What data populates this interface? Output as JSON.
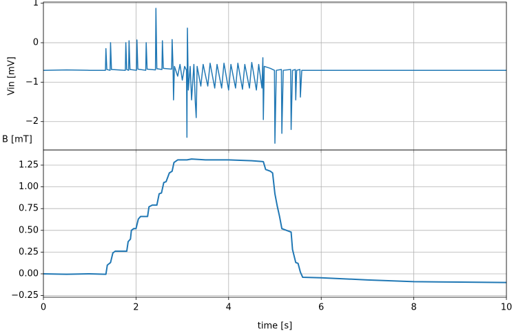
{
  "chart_data": [
    {
      "type": "line",
      "ylabel": "Vin [mV]",
      "x": [
        0,
        0.5,
        1.0,
        1.34,
        1.35,
        1.37,
        1.44,
        1.45,
        1.47,
        1.77,
        1.78,
        1.8,
        1.84,
        1.85,
        1.87,
        2.01,
        2.02,
        2.04,
        2.21,
        2.22,
        2.24,
        2.42,
        2.43,
        2.45,
        2.56,
        2.57,
        2.59,
        2.77,
        2.78,
        2.8,
        2.81,
        2.83,
        2.9,
        2.95,
        3.0,
        3.05,
        3.09,
        3.1,
        3.11,
        3.13,
        3.17,
        3.2,
        3.25,
        3.28,
        3.3,
        3.32,
        3.4,
        3.45,
        3.55,
        3.6,
        3.7,
        3.75,
        3.85,
        3.9,
        4.0,
        4.05,
        4.15,
        4.2,
        4.3,
        4.35,
        4.45,
        4.5,
        4.6,
        4.65,
        4.72,
        4.74,
        4.75,
        4.77,
        4.9,
        4.99,
        5.0,
        5.03,
        5.14,
        5.15,
        5.18,
        5.34,
        5.35,
        5.38,
        5.44,
        5.45,
        5.47,
        5.54,
        5.55,
        5.58,
        6,
        7,
        8,
        9,
        10
      ],
      "series": [
        {
          "color": "#1f77b4",
          "values": [
            -0.7,
            -0.69,
            -0.7,
            -0.7,
            -0.15,
            -0.68,
            -0.7,
            0.0,
            -0.68,
            -0.7,
            0.0,
            -0.68,
            -0.7,
            0.05,
            -0.68,
            -0.7,
            0.07,
            -0.67,
            -0.7,
            0.0,
            -0.67,
            -0.69,
            0.87,
            -0.66,
            -0.68,
            0.05,
            -0.65,
            -0.67,
            0.08,
            -0.62,
            -1.45,
            -0.6,
            -0.85,
            -0.55,
            -0.95,
            -0.6,
            -0.7,
            -2.4,
            0.37,
            -1.2,
            -0.6,
            -1.45,
            -0.55,
            -1.5,
            -1.9,
            -0.6,
            -1.1,
            -0.55,
            -1.1,
            -0.52,
            -1.15,
            -0.55,
            -1.15,
            -0.52,
            -1.2,
            -0.55,
            -1.15,
            -0.52,
            -1.18,
            -0.55,
            -1.15,
            -0.5,
            -1.2,
            -0.55,
            -1.15,
            -0.38,
            -1.95,
            -0.6,
            -0.65,
            -0.7,
            -2.55,
            -0.7,
            -0.68,
            -2.3,
            -0.7,
            -0.68,
            -2.2,
            -0.7,
            -0.68,
            -1.45,
            -0.7,
            -0.68,
            -1.38,
            -0.7,
            -0.7,
            -0.7,
            -0.7,
            -0.7,
            -0.7
          ]
        }
      ],
      "xlim": [
        0,
        10
      ],
      "xticks": [
        0,
        2,
        4,
        6,
        8,
        10
      ],
      "ylim": [
        -2.72,
        1.03
      ],
      "yticks": [
        {
          "value": -2,
          "label": "−2"
        },
        {
          "value": -1,
          "label": "−1"
        },
        0,
        1
      ],
      "grid": true
    },
    {
      "type": "line",
      "ylabel": "B [mT]",
      "xlabel": "time [s]",
      "x": [
        0,
        0.5,
        1.0,
        1.35,
        1.38,
        1.45,
        1.5,
        1.55,
        1.8,
        1.83,
        1.88,
        1.9,
        1.95,
        2.0,
        2.05,
        2.1,
        2.25,
        2.28,
        2.35,
        2.45,
        2.5,
        2.55,
        2.6,
        2.65,
        2.72,
        2.78,
        2.82,
        2.9,
        3.1,
        3.2,
        3.5,
        4.0,
        4.5,
        4.75,
        4.8,
        4.9,
        4.95,
        5.0,
        5.05,
        5.1,
        5.15,
        5.25,
        5.35,
        5.38,
        5.45,
        5.5,
        5.55,
        5.6,
        6,
        7,
        8,
        9,
        10
      ],
      "series": [
        {
          "color": "#1f77b4",
          "values": [
            0,
            -0.005,
            0,
            -0.005,
            0.1,
            0.13,
            0.24,
            0.26,
            0.26,
            0.37,
            0.4,
            0.5,
            0.52,
            0.52,
            0.63,
            0.66,
            0.66,
            0.77,
            0.79,
            0.79,
            0.92,
            0.93,
            1.05,
            1.06,
            1.16,
            1.18,
            1.28,
            1.31,
            1.31,
            1.32,
            1.31,
            1.31,
            1.3,
            1.29,
            1.2,
            1.18,
            1.16,
            0.92,
            0.78,
            0.66,
            0.52,
            0.5,
            0.48,
            0.28,
            0.13,
            0.12,
            0.02,
            -0.04,
            -0.045,
            -0.07,
            -0.09,
            -0.095,
            -0.1
          ]
        }
      ],
      "xlim": [
        0,
        10
      ],
      "xticks": [
        0,
        2,
        4,
        6,
        8,
        10
      ],
      "ylim": [
        -0.269,
        1.424
      ],
      "yticks": [
        {
          "value": -0.25,
          "label": "−0.25"
        },
        {
          "value": 0,
          "label": "0.00"
        },
        {
          "value": 0.25,
          "label": "0.25"
        },
        {
          "value": 0.5,
          "label": "0.50"
        },
        {
          "value": 0.75,
          "label": "0.75"
        },
        {
          "value": 1.0,
          "label": "1.00"
        },
        {
          "value": 1.25,
          "label": "1.25"
        }
      ],
      "grid": true
    }
  ]
}
